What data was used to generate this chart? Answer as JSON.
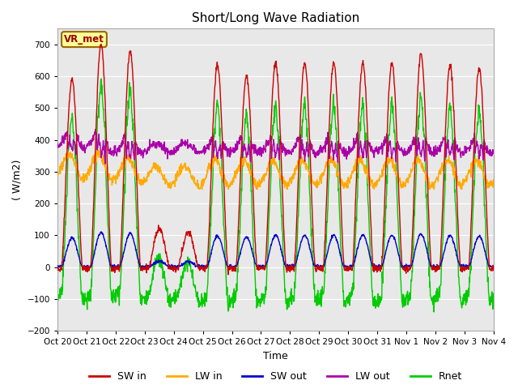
{
  "title": "Short/Long Wave Radiation",
  "xlabel": "Time",
  "ylabel": "( W/m2)",
  "ylim": [
    -200,
    750
  ],
  "yticks": [
    -200,
    -100,
    0,
    100,
    200,
    300,
    400,
    500,
    600,
    700
  ],
  "xlim": [
    0,
    15
  ],
  "xtick_labels": [
    "Oct 20",
    "Oct 21",
    "Oct 22",
    "Oct 23",
    "Oct 24",
    "Oct 25",
    "Oct 26",
    "Oct 27",
    "Oct 28",
    "Oct 29",
    "Oct 30",
    "Oct 31",
    "Nov 1",
    "Nov 2",
    "Nov 3",
    "Nov 4"
  ],
  "legend_labels": [
    "SW in",
    "LW in",
    "SW out",
    "LW out",
    "Rnet"
  ],
  "legend_colors": [
    "#cc0000",
    "#ffaa00",
    "#0000cc",
    "#aa00aa",
    "#00cc00"
  ],
  "annotation_text": "VR_met",
  "annotation_color": "#990000",
  "annotation_bg": "#ffff99",
  "background_color": "#e8e8e8",
  "line_width": 1.0,
  "sw_in_peaks": [
    590,
    700,
    680,
    120,
    110,
    635,
    600,
    640,
    640,
    640,
    640,
    640,
    670,
    630,
    625
  ],
  "n_days": 15,
  "n_pts_per_day": 96
}
